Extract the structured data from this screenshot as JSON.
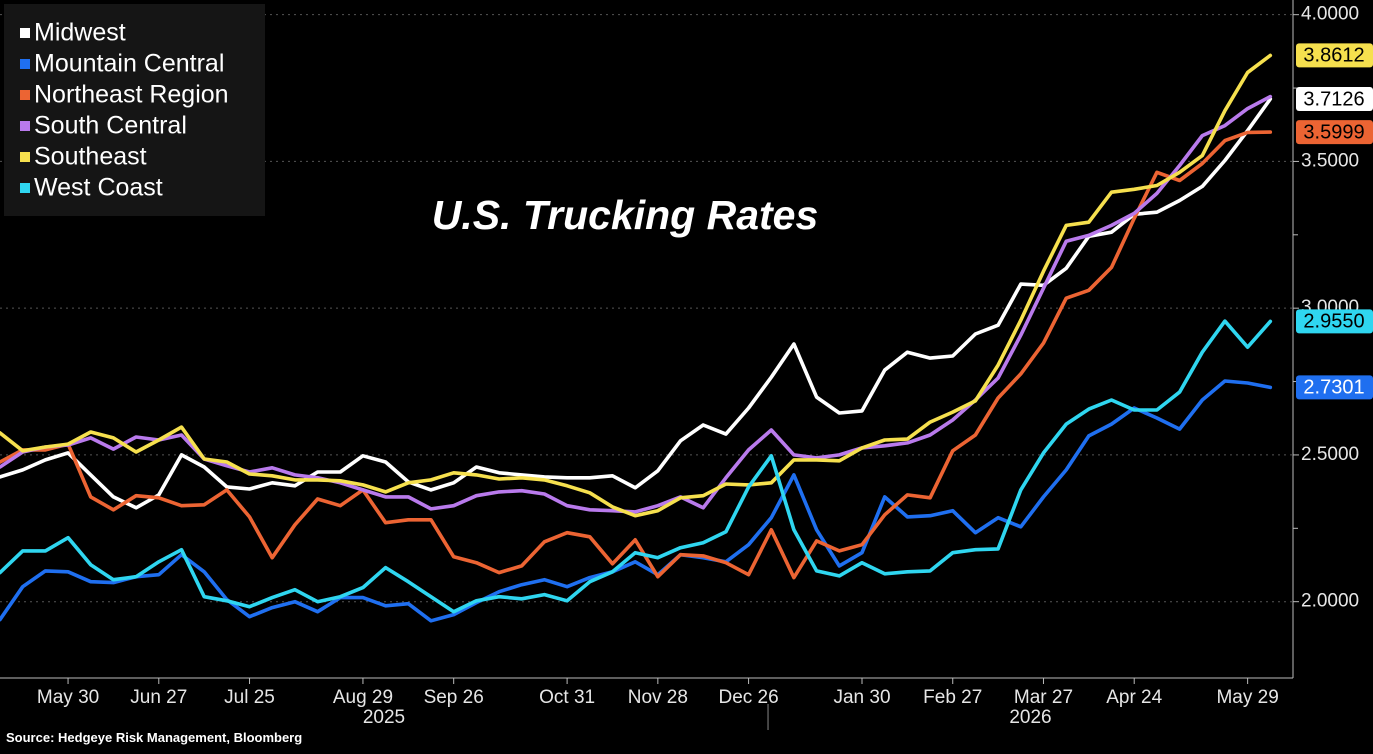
{
  "chart_data": {
    "type": "line",
    "title": "U.S. Trucking Rates",
    "source": "Source: Hedgeye Risk Management, Bloomberg",
    "x": [
      "2025-05-09",
      "2025-05-16",
      "2025-05-23",
      "2025-05-30",
      "2025-06-06",
      "2025-06-13",
      "2025-06-20",
      "2025-06-27",
      "2025-07-04",
      "2025-07-11",
      "2025-07-18",
      "2025-07-25",
      "2025-08-01",
      "2025-08-08",
      "2025-08-15",
      "2025-08-22",
      "2025-08-29",
      "2025-09-05",
      "2025-09-12",
      "2025-09-19",
      "2025-09-26",
      "2025-10-03",
      "2025-10-10",
      "2025-10-17",
      "2025-10-24",
      "2025-10-31",
      "2025-11-07",
      "2025-11-14",
      "2025-11-21",
      "2025-11-28",
      "2025-12-05",
      "2025-12-12",
      "2025-12-19",
      "2025-12-26",
      "2026-01-02",
      "2026-01-09",
      "2026-01-16",
      "2026-01-23",
      "2026-01-30",
      "2026-02-06",
      "2026-02-13",
      "2026-02-20",
      "2026-02-27",
      "2026-03-06",
      "2026-03-13",
      "2026-03-20",
      "2026-03-27",
      "2026-04-03",
      "2026-04-10",
      "2026-04-17",
      "2026-04-24",
      "2026-05-01",
      "2026-05-08",
      "2026-05-15",
      "2026-05-22",
      "2026-05-29",
      "2026-06-05"
    ],
    "xlim": [
      "2025-05-09",
      "2026-06-12"
    ],
    "xticks": [
      {
        "value": "2025-05-30",
        "label": "May 30"
      },
      {
        "value": "2025-06-27",
        "label": "Jun 27"
      },
      {
        "value": "2025-07-25",
        "label": "Jul 25"
      },
      {
        "value": "2025-08-29",
        "label": "Aug 29"
      },
      {
        "value": "2025-09-26",
        "label": "Sep 26"
      },
      {
        "value": "2025-10-31",
        "label": "Oct 31"
      },
      {
        "value": "2025-11-28",
        "label": "Nov 28"
      },
      {
        "value": "2025-12-26",
        "label": "Dec 26"
      },
      {
        "value": "2026-01-30",
        "label": "Jan 30"
      },
      {
        "value": "2026-02-27",
        "label": "Feb 27"
      },
      {
        "value": "2026-03-27",
        "label": "Mar 27"
      },
      {
        "value": "2026-04-24",
        "label": "Apr 24"
      },
      {
        "value": "2026-05-29",
        "label": "May 29"
      }
    ],
    "x_years": [
      "2025",
      "2026"
    ],
    "ylim": [
      1.74,
      4.05
    ],
    "yticks": [
      {
        "value": 2,
        "label": "2.0000"
      },
      {
        "value": 2.5,
        "label": "2.5000"
      },
      {
        "value": 3,
        "label": "3.0000"
      },
      {
        "value": 3.5,
        "label": "3.5000"
      },
      {
        "value": 4,
        "label": "4.0000"
      }
    ],
    "yticks_minor": [
      2.25,
      2.75,
      3.25,
      3.75
    ],
    "grid": true,
    "legend": "top-left",
    "series": [
      {
        "name": "Midwest",
        "color": "#ffffff",
        "end_label": "3.7126",
        "values": [
          2.425,
          2.449,
          2.483,
          2.507,
          2.432,
          2.357,
          2.32,
          2.364,
          2.5,
          2.459,
          2.391,
          2.384,
          2.405,
          2.395,
          2.442,
          2.442,
          2.497,
          2.476,
          2.408,
          2.381,
          2.405,
          2.459,
          2.439,
          2.432,
          2.425,
          2.422,
          2.422,
          2.429,
          2.388,
          2.446,
          2.548,
          2.602,
          2.571,
          2.66,
          2.765,
          2.878,
          2.697,
          2.643,
          2.65,
          2.789,
          2.85,
          2.83,
          2.837,
          2.912,
          2.942,
          3.082,
          3.078,
          3.136,
          3.245,
          3.259,
          3.32,
          3.327,
          3.367,
          3.415,
          3.503,
          3.605,
          3.7126
        ]
      },
      {
        "name": "Mountain Central",
        "color": "#1f6ff0",
        "end_label": "2.7301",
        "values": [
          1.939,
          2.051,
          2.105,
          2.102,
          2.068,
          2.065,
          2.085,
          2.092,
          2.16,
          2.102,
          2.007,
          1.949,
          1.98,
          2.0,
          1.966,
          2.014,
          2.014,
          1.986,
          1.993,
          1.935,
          1.956,
          1.997,
          2.034,
          2.058,
          2.075,
          2.051,
          2.082,
          2.102,
          2.136,
          2.092,
          2.16,
          2.15,
          2.136,
          2.194,
          2.286,
          2.432,
          2.245,
          2.122,
          2.167,
          2.357,
          2.289,
          2.293,
          2.31,
          2.235,
          2.286,
          2.255,
          2.357,
          2.449,
          2.565,
          2.605,
          2.66,
          2.626,
          2.588,
          2.687,
          2.752,
          2.745,
          2.7301
        ]
      },
      {
        "name": "Northeast Region",
        "color": "#ec6433",
        "end_label": "3.5999",
        "values": [
          2.476,
          2.517,
          2.517,
          2.537,
          2.357,
          2.313,
          2.361,
          2.354,
          2.327,
          2.33,
          2.381,
          2.289,
          2.15,
          2.262,
          2.35,
          2.327,
          2.381,
          2.269,
          2.279,
          2.279,
          2.153,
          2.133,
          2.099,
          2.122,
          2.204,
          2.235,
          2.221,
          2.129,
          2.211,
          2.085,
          2.16,
          2.156,
          2.133,
          2.092,
          2.245,
          2.082,
          2.207,
          2.173,
          2.194,
          2.296,
          2.364,
          2.354,
          2.514,
          2.568,
          2.694,
          2.776,
          2.881,
          3.034,
          3.061,
          3.139,
          3.306,
          3.463,
          3.435,
          3.493,
          3.571,
          3.599,
          3.5999
        ]
      },
      {
        "name": "South Central",
        "color": "#b97aec",
        "values": [
          2.459,
          2.51,
          2.527,
          2.534,
          2.558,
          2.52,
          2.561,
          2.551,
          2.568,
          2.486,
          2.463,
          2.442,
          2.456,
          2.432,
          2.422,
          2.405,
          2.381,
          2.357,
          2.357,
          2.316,
          2.327,
          2.361,
          2.374,
          2.378,
          2.367,
          2.327,
          2.313,
          2.31,
          2.306,
          2.327,
          2.357,
          2.32,
          2.422,
          2.517,
          2.585,
          2.5,
          2.49,
          2.5,
          2.524,
          2.531,
          2.541,
          2.568,
          2.619,
          2.687,
          2.762,
          2.908,
          3.068,
          3.228,
          3.248,
          3.282,
          3.323,
          3.391,
          3.486,
          3.588,
          3.622,
          3.68,
          3.721
        ]
      },
      {
        "name": "Southeast",
        "color": "#f6e04e",
        "end_label": "3.8612",
        "values": [
          2.575,
          2.514,
          2.527,
          2.537,
          2.578,
          2.558,
          2.51,
          2.551,
          2.595,
          2.486,
          2.476,
          2.435,
          2.429,
          2.415,
          2.415,
          2.412,
          2.398,
          2.374,
          2.405,
          2.415,
          2.439,
          2.432,
          2.418,
          2.422,
          2.415,
          2.395,
          2.371,
          2.323,
          2.293,
          2.31,
          2.354,
          2.361,
          2.401,
          2.398,
          2.405,
          2.483,
          2.483,
          2.48,
          2.524,
          2.551,
          2.554,
          2.612,
          2.646,
          2.684,
          2.806,
          2.959,
          3.126,
          3.282,
          3.293,
          3.395,
          3.405,
          3.418,
          3.463,
          3.52,
          3.673,
          3.803,
          3.8612
        ]
      },
      {
        "name": "West Coast",
        "color": "#2fd6f0",
        "end_label": "2.9550",
        "values": [
          2.099,
          2.173,
          2.173,
          2.218,
          2.126,
          2.075,
          2.085,
          2.136,
          2.177,
          2.017,
          2.003,
          1.983,
          2.014,
          2.041,
          2.0,
          2.017,
          2.048,
          2.116,
          2.068,
          2.017,
          1.966,
          2.003,
          2.017,
          2.01,
          2.024,
          2.003,
          2.068,
          2.102,
          2.167,
          2.15,
          2.184,
          2.201,
          2.238,
          2.391,
          2.497,
          2.245,
          2.105,
          2.088,
          2.133,
          2.095,
          2.102,
          2.105,
          2.167,
          2.177,
          2.18,
          2.381,
          2.507,
          2.605,
          2.656,
          2.687,
          2.653,
          2.653,
          2.714,
          2.85,
          2.956,
          2.867,
          2.955
        ]
      }
    ]
  }
}
